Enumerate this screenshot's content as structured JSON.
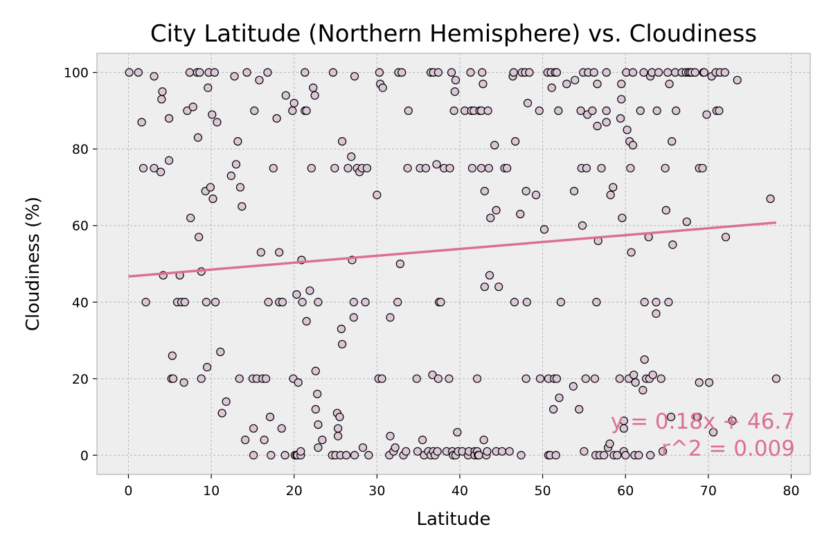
{
  "chart_data": {
    "type": "scatter",
    "title": "City Latitude (Northern Hemisphere) vs. Cloudiness",
    "xlabel": "Latitude",
    "ylabel": "Cloudiness (%)",
    "xlim": [
      -3.8,
      82.3
    ],
    "ylim": [
      -5,
      105
    ],
    "xticks": [
      0,
      10,
      20,
      30,
      40,
      50,
      60,
      70,
      80
    ],
    "yticks": [
      0,
      20,
      40,
      60,
      80,
      100
    ],
    "grid": true,
    "colors": {
      "background": "#eeeeee",
      "grid": "#b2b2b2",
      "marker_fill": "#dcc7d8",
      "marker_edge": "#000000",
      "regression_line": "#db6f93",
      "annotation": "#db6f93"
    },
    "regression": {
      "slope": 0.18,
      "intercept": 46.7,
      "x_range": [
        0,
        78.2
      ],
      "equation": "y = 0.18x + 46.7",
      "r_squared_label": "r^2 = 0.009"
    },
    "points": [
      [
        0.1,
        100
      ],
      [
        1.2,
        100
      ],
      [
        1.6,
        87
      ],
      [
        1.8,
        75
      ],
      [
        2.1,
        40
      ],
      [
        3.1,
        75
      ],
      [
        3.1,
        99
      ],
      [
        3.9,
        74
      ],
      [
        4.0,
        93
      ],
      [
        4.1,
        95
      ],
      [
        4.2,
        47
      ],
      [
        4.9,
        88
      ],
      [
        4.9,
        77
      ],
      [
        5.2,
        20
      ],
      [
        5.3,
        26
      ],
      [
        5.4,
        20
      ],
      [
        5.9,
        40
      ],
      [
        6.2,
        47
      ],
      [
        6.4,
        40
      ],
      [
        6.7,
        19
      ],
      [
        6.8,
        40
      ],
      [
        7.1,
        90
      ],
      [
        7.4,
        100
      ],
      [
        7.5,
        62
      ],
      [
        7.8,
        91
      ],
      [
        8.3,
        100
      ],
      [
        8.4,
        83
      ],
      [
        8.5,
        57
      ],
      [
        8.6,
        100
      ],
      [
        8.8,
        48
      ],
      [
        8.8,
        20
      ],
      [
        9.3,
        69
      ],
      [
        9.4,
        40
      ],
      [
        9.5,
        23
      ],
      [
        9.6,
        96
      ],
      [
        9.7,
        100
      ],
      [
        9.9,
        70
      ],
      [
        10.1,
        89
      ],
      [
        10.2,
        67
      ],
      [
        10.4,
        100
      ],
      [
        10.5,
        40
      ],
      [
        10.7,
        87
      ],
      [
        11.1,
        27
      ],
      [
        11.3,
        11
      ],
      [
        11.8,
        14
      ],
      [
        12.4,
        73
      ],
      [
        12.8,
        99
      ],
      [
        13.0,
        76
      ],
      [
        13.2,
        82
      ],
      [
        13.4,
        20
      ],
      [
        13.5,
        70
      ],
      [
        13.7,
        65
      ],
      [
        14.1,
        4
      ],
      [
        14.3,
        100
      ],
      [
        15.0,
        20
      ],
      [
        15.1,
        7
      ],
      [
        15.1,
        0
      ],
      [
        15.2,
        90
      ],
      [
        15.5,
        20
      ],
      [
        15.8,
        98
      ],
      [
        16.0,
        53
      ],
      [
        16.2,
        20
      ],
      [
        16.4,
        4
      ],
      [
        16.6,
        20
      ],
      [
        16.8,
        100
      ],
      [
        16.9,
        40
      ],
      [
        17.1,
        10
      ],
      [
        17.2,
        0
      ],
      [
        17.5,
        75
      ],
      [
        17.9,
        88
      ],
      [
        18.2,
        53
      ],
      [
        18.2,
        40
      ],
      [
        18.5,
        7
      ],
      [
        18.6,
        40
      ],
      [
        18.9,
        0
      ],
      [
        19.0,
        94
      ],
      [
        19.8,
        90
      ],
      [
        19.9,
        20
      ],
      [
        20.0,
        92
      ],
      [
        20.1,
        0
      ],
      [
        20.3,
        42
      ],
      [
        20.3,
        0
      ],
      [
        20.4,
        0
      ],
      [
        20.5,
        19
      ],
      [
        20.8,
        0
      ],
      [
        20.8,
        1
      ],
      [
        20.9,
        51
      ],
      [
        21.0,
        40
      ],
      [
        21.3,
        100
      ],
      [
        21.3,
        90
      ],
      [
        21.5,
        35
      ],
      [
        21.5,
        90
      ],
      [
        21.9,
        43
      ],
      [
        22.1,
        75
      ],
      [
        22.3,
        96
      ],
      [
        22.5,
        94
      ],
      [
        22.6,
        22
      ],
      [
        22.6,
        12
      ],
      [
        22.8,
        16
      ],
      [
        22.9,
        8
      ],
      [
        22.9,
        40
      ],
      [
        22.9,
        2
      ],
      [
        23.4,
        4
      ],
      [
        24.6,
        0
      ],
      [
        24.7,
        100
      ],
      [
        24.9,
        75
      ],
      [
        25.0,
        0
      ],
      [
        25.2,
        11
      ],
      [
        25.3,
        7
      ],
      [
        25.3,
        5
      ],
      [
        25.5,
        10
      ],
      [
        25.6,
        0
      ],
      [
        25.7,
        33
      ],
      [
        25.8,
        29
      ],
      [
        25.8,
        82
      ],
      [
        26.3,
        0
      ],
      [
        26.5,
        75
      ],
      [
        26.9,
        78
      ],
      [
        27.0,
        51
      ],
      [
        27.2,
        40
      ],
      [
        27.2,
        36
      ],
      [
        27.3,
        0
      ],
      [
        27.3,
        99
      ],
      [
        27.6,
        75
      ],
      [
        27.9,
        74
      ],
      [
        28.2,
        75
      ],
      [
        28.3,
        2
      ],
      [
        28.6,
        40
      ],
      [
        28.8,
        75
      ],
      [
        29.0,
        0
      ],
      [
        30.0,
        68
      ],
      [
        30.2,
        20
      ],
      [
        30.3,
        100
      ],
      [
        30.4,
        97
      ],
      [
        30.6,
        20
      ],
      [
        30.7,
        96
      ],
      [
        31.5,
        0
      ],
      [
        31.6,
        5
      ],
      [
        31.6,
        36
      ],
      [
        32.0,
        1
      ],
      [
        32.2,
        2
      ],
      [
        32.5,
        40
      ],
      [
        32.6,
        100
      ],
      [
        32.8,
        50
      ],
      [
        33.0,
        100
      ],
      [
        33.2,
        0
      ],
      [
        33.5,
        1
      ],
      [
        33.7,
        75
      ],
      [
        33.8,
        90
      ],
      [
        34.8,
        20
      ],
      [
        34.9,
        1
      ],
      [
        35.2,
        75
      ],
      [
        35.5,
        4
      ],
      [
        35.7,
        0
      ],
      [
        35.9,
        75
      ],
      [
        36.2,
        1
      ],
      [
        36.5,
        100
      ],
      [
        36.5,
        0
      ],
      [
        36.7,
        21
      ],
      [
        36.8,
        100
      ],
      [
        36.8,
        1
      ],
      [
        37.0,
        0
      ],
      [
        37.2,
        76
      ],
      [
        37.3,
        1
      ],
      [
        37.4,
        100
      ],
      [
        37.4,
        20
      ],
      [
        37.5,
        40
      ],
      [
        37.7,
        40
      ],
      [
        38.1,
        75
      ],
      [
        38.4,
        1
      ],
      [
        38.7,
        20
      ],
      [
        38.8,
        75
      ],
      [
        39.0,
        100
      ],
      [
        39.1,
        1
      ],
      [
        39.2,
        0
      ],
      [
        39.3,
        90
      ],
      [
        39.4,
        95
      ],
      [
        39.5,
        98
      ],
      [
        39.5,
        0
      ],
      [
        39.7,
        6
      ],
      [
        39.8,
        1
      ],
      [
        40.3,
        1
      ],
      [
        40.6,
        90
      ],
      [
        41.0,
        0
      ],
      [
        41.1,
        1
      ],
      [
        41.3,
        100
      ],
      [
        41.4,
        90
      ],
      [
        41.5,
        75
      ],
      [
        41.7,
        90
      ],
      [
        41.8,
        1
      ],
      [
        41.8,
        0
      ],
      [
        42.1,
        1
      ],
      [
        42.1,
        20
      ],
      [
        42.2,
        0
      ],
      [
        42.3,
        0
      ],
      [
        42.4,
        90
      ],
      [
        42.6,
        75
      ],
      [
        42.6,
        90
      ],
      [
        42.7,
        100
      ],
      [
        42.8,
        97
      ],
      [
        42.9,
        4
      ],
      [
        43.0,
        69
      ],
      [
        43.0,
        44
      ],
      [
        43.2,
        0
      ],
      [
        43.3,
        1
      ],
      [
        43.4,
        90
      ],
      [
        43.5,
        75
      ],
      [
        43.6,
        47
      ],
      [
        43.7,
        62
      ],
      [
        44.2,
        81
      ],
      [
        44.4,
        1
      ],
      [
        44.4,
        64
      ],
      [
        44.7,
        44
      ],
      [
        45.1,
        1
      ],
      [
        45.4,
        75
      ],
      [
        45.7,
        75
      ],
      [
        46.0,
        1
      ],
      [
        46.4,
        99
      ],
      [
        46.5,
        100
      ],
      [
        46.6,
        40
      ],
      [
        46.7,
        82
      ],
      [
        47.3,
        63
      ],
      [
        47.4,
        0
      ],
      [
        47.5,
        100
      ],
      [
        47.9,
        100
      ],
      [
        48.0,
        20
      ],
      [
        48.0,
        69
      ],
      [
        48.1,
        40
      ],
      [
        48.2,
        92
      ],
      [
        48.4,
        100
      ],
      [
        49.2,
        68
      ],
      [
        49.6,
        90
      ],
      [
        49.7,
        20
      ],
      [
        50.2,
        59
      ],
      [
        50.6,
        100
      ],
      [
        50.7,
        20
      ],
      [
        50.7,
        0
      ],
      [
        50.9,
        0
      ],
      [
        51.0,
        100
      ],
      [
        51.1,
        96
      ],
      [
        51.3,
        12
      ],
      [
        51.4,
        20
      ],
      [
        51.5,
        100
      ],
      [
        51.6,
        0
      ],
      [
        51.7,
        100
      ],
      [
        51.7,
        20
      ],
      [
        51.9,
        90
      ],
      [
        52.0,
        15
      ],
      [
        52.2,
        40
      ],
      [
        52.9,
        97
      ],
      [
        53.7,
        18
      ],
      [
        53.8,
        69
      ],
      [
        53.9,
        98
      ],
      [
        54.4,
        12
      ],
      [
        54.6,
        90
      ],
      [
        54.7,
        75
      ],
      [
        54.8,
        60
      ],
      [
        54.9,
        100
      ],
      [
        55.0,
        1
      ],
      [
        55.2,
        20
      ],
      [
        55.3,
        75
      ],
      [
        55.4,
        89
      ],
      [
        55.5,
        100
      ],
      [
        56.0,
        90
      ],
      [
        56.2,
        100
      ],
      [
        56.3,
        20
      ],
      [
        56.4,
        0
      ],
      [
        56.5,
        40
      ],
      [
        56.6,
        97
      ],
      [
        56.6,
        86
      ],
      [
        56.7,
        56
      ],
      [
        56.9,
        0
      ],
      [
        57.1,
        75
      ],
      [
        57.4,
        0
      ],
      [
        57.7,
        100
      ],
      [
        57.7,
        90
      ],
      [
        57.7,
        87
      ],
      [
        57.9,
        2
      ],
      [
        58.1,
        3
      ],
      [
        58.2,
        68
      ],
      [
        58.5,
        70
      ],
      [
        58.6,
        0
      ],
      [
        59.0,
        0
      ],
      [
        59.3,
        20
      ],
      [
        59.4,
        88
      ],
      [
        59.5,
        97
      ],
      [
        59.5,
        93
      ],
      [
        59.6,
        62
      ],
      [
        59.8,
        9
      ],
      [
        59.8,
        7
      ],
      [
        59.8,
        1
      ],
      [
        60.0,
        0
      ],
      [
        60.1,
        100
      ],
      [
        60.2,
        85
      ],
      [
        60.4,
        20
      ],
      [
        60.5,
        82
      ],
      [
        60.6,
        75
      ],
      [
        60.7,
        53
      ],
      [
        60.9,
        81
      ],
      [
        60.9,
        100
      ],
      [
        61.0,
        21
      ],
      [
        61.1,
        0
      ],
      [
        61.2,
        19
      ],
      [
        61.6,
        0
      ],
      [
        61.8,
        90
      ],
      [
        62.1,
        17
      ],
      [
        62.2,
        100
      ],
      [
        62.3,
        25
      ],
      [
        62.3,
        40
      ],
      [
        62.5,
        20
      ],
      [
        62.8,
        57
      ],
      [
        62.9,
        20
      ],
      [
        63.0,
        99
      ],
      [
        63.0,
        0
      ],
      [
        63.2,
        100
      ],
      [
        63.3,
        21
      ],
      [
        63.7,
        37
      ],
      [
        63.7,
        40
      ],
      [
        63.8,
        90
      ],
      [
        64.0,
        100
      ],
      [
        64.3,
        20
      ],
      [
        64.5,
        1
      ],
      [
        64.8,
        75
      ],
      [
        64.9,
        64
      ],
      [
        65.1,
        100
      ],
      [
        65.2,
        40
      ],
      [
        65.3,
        97
      ],
      [
        65.5,
        10
      ],
      [
        65.6,
        82
      ],
      [
        65.7,
        55
      ],
      [
        66.0,
        100
      ],
      [
        66.1,
        90
      ],
      [
        66.8,
        100
      ],
      [
        67.3,
        100
      ],
      [
        67.4,
        61
      ],
      [
        67.6,
        100
      ],
      [
        67.8,
        100
      ],
      [
        68.0,
        100
      ],
      [
        68.4,
        100
      ],
      [
        68.7,
        10
      ],
      [
        68.9,
        19
      ],
      [
        68.9,
        75
      ],
      [
        69.3,
        75
      ],
      [
        69.4,
        100
      ],
      [
        69.5,
        100
      ],
      [
        69.8,
        89
      ],
      [
        70.1,
        19
      ],
      [
        70.4,
        99
      ],
      [
        70.6,
        6
      ],
      [
        70.9,
        100
      ],
      [
        71.0,
        90
      ],
      [
        71.3,
        90
      ],
      [
        71.4,
        100
      ],
      [
        72.0,
        100
      ],
      [
        72.1,
        57
      ],
      [
        72.9,
        9
      ],
      [
        73.5,
        98
      ],
      [
        77.5,
        67
      ],
      [
        78.2,
        20
      ]
    ]
  }
}
